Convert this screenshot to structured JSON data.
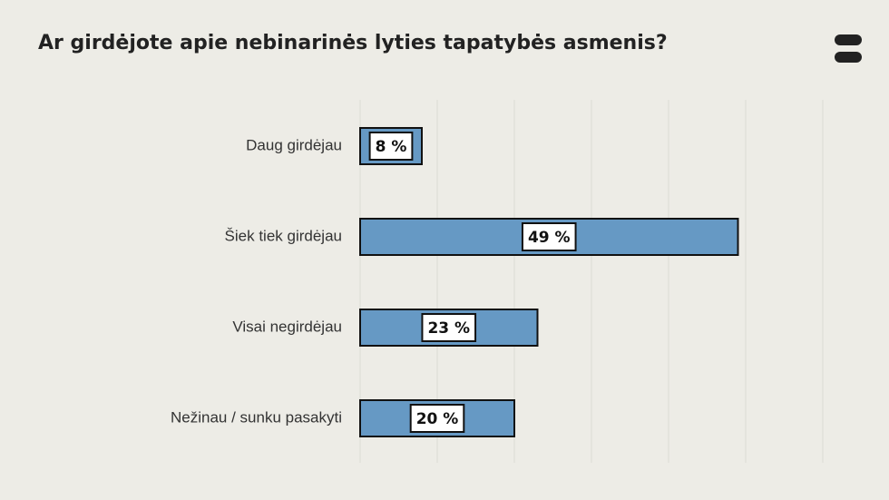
{
  "chart_data": {
    "type": "bar",
    "orientation": "horizontal",
    "title": "Ar girdėjote apie nebinarinės lyties tapatybės asmenis?",
    "categories": [
      "Daug girdėjau",
      "Šiek tiek girdėjau",
      "Visai negirdėjau",
      "Nežinau / sunku pasakyti"
    ],
    "values": [
      8,
      49,
      23,
      20
    ],
    "value_labels": [
      "8 %",
      "49 %",
      "23 %",
      "20 %"
    ],
    "color": "#6699c4",
    "xlim": [
      0,
      60
    ],
    "xticks": [
      0,
      10,
      20,
      30,
      40,
      50,
      60
    ],
    "grid": true
  }
}
